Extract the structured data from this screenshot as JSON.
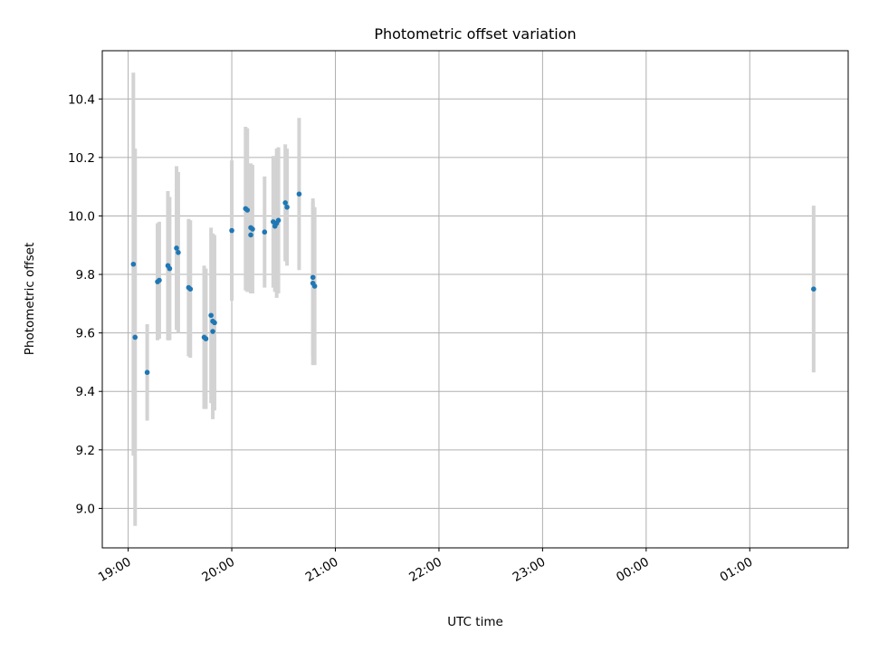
{
  "chart_data": {
    "type": "scatter",
    "title": "Photometric offset variation",
    "xlabel": "UTC time",
    "ylabel": "Photometric offset",
    "x_tick_labels": [
      "19:00",
      "20:00",
      "21:00",
      "22:00",
      "23:00",
      "00:00",
      "01:00"
    ],
    "x_range_hours": [
      18.75,
      25.95
    ],
    "ylim": [
      8.865,
      10.565
    ],
    "y_ticks": [
      9.0,
      9.2,
      9.4,
      9.6,
      9.8,
      10.0,
      10.2,
      10.4
    ],
    "y_tick_labels": [
      "9.0",
      "9.2",
      "9.4",
      "9.6",
      "9.8",
      "10.0",
      "10.2",
      "10.4"
    ],
    "grid": true,
    "colors": {
      "points": "#1f77b4",
      "errorbars": "#d3d3d3",
      "grid": "#b0b0b0"
    },
    "series": [
      {
        "points": [
          {
            "t": "19:03",
            "y": 9.835,
            "err": 0.655
          },
          {
            "t": "19:04",
            "y": 9.585,
            "err": 0.645
          },
          {
            "t": "19:11",
            "y": 9.465,
            "err": 0.165
          },
          {
            "t": "19:17",
            "y": 9.775,
            "err": 0.2
          },
          {
            "t": "19:18",
            "y": 9.78,
            "err": 0.2
          },
          {
            "t": "19:23",
            "y": 9.83,
            "err": 0.255
          },
          {
            "t": "19:24",
            "y": 9.82,
            "err": 0.245
          },
          {
            "t": "19:28",
            "y": 9.89,
            "err": 0.28
          },
          {
            "t": "19:29",
            "y": 9.875,
            "err": 0.275
          },
          {
            "t": "19:35",
            "y": 9.755,
            "err": 0.235
          },
          {
            "t": "19:36",
            "y": 9.75,
            "err": 0.235
          },
          {
            "t": "19:44",
            "y": 9.585,
            "err": 0.245
          },
          {
            "t": "19:45",
            "y": 9.58,
            "err": 0.24
          },
          {
            "t": "19:48",
            "y": 9.66,
            "err": 0.3
          },
          {
            "t": "19:49",
            "y": 9.605,
            "err": 0.3
          },
          {
            "t": "19:49",
            "y": 9.64,
            "err": 0.3
          },
          {
            "t": "19:50",
            "y": 9.635,
            "err": 0.3
          },
          {
            "t": "20:00",
            "y": 9.95,
            "err": 0.24
          },
          {
            "t": "20:08",
            "y": 10.025,
            "err": 0.28
          },
          {
            "t": "20:09",
            "y": 10.02,
            "err": 0.28
          },
          {
            "t": "20:11",
            "y": 9.935,
            "err": 0.2
          },
          {
            "t": "20:11",
            "y": 9.96,
            "err": 0.22
          },
          {
            "t": "20:12",
            "y": 9.955,
            "err": 0.22
          },
          {
            "t": "20:19",
            "y": 9.945,
            "err": 0.19
          },
          {
            "t": "20:24",
            "y": 9.98,
            "err": 0.225
          },
          {
            "t": "20:25",
            "y": 9.965,
            "err": 0.225
          },
          {
            "t": "20:26",
            "y": 9.975,
            "err": 0.255
          },
          {
            "t": "20:27",
            "y": 9.985,
            "err": 0.25
          },
          {
            "t": "20:31",
            "y": 10.045,
            "err": 0.2
          },
          {
            "t": "20:32",
            "y": 10.03,
            "err": 0.2
          },
          {
            "t": "20:39",
            "y": 10.075,
            "err": 0.26
          },
          {
            "t": "20:47",
            "y": 9.79,
            "err": 0.27
          },
          {
            "t": "20:47",
            "y": 9.77,
            "err": 0.28
          },
          {
            "t": "20:48",
            "y": 9.76,
            "err": 0.27
          },
          {
            "t": "01:37",
            "y": 9.75,
            "err": 0.285
          }
        ]
      }
    ]
  }
}
